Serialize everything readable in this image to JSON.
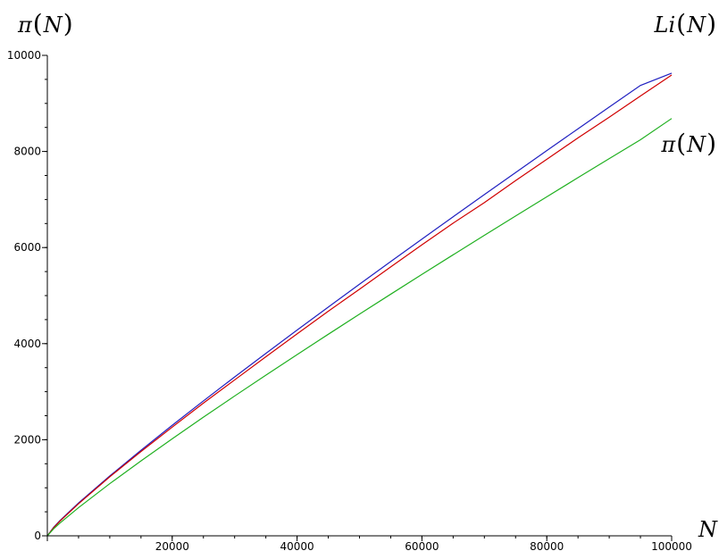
{
  "chart_data": {
    "type": "line",
    "xlabel": "N",
    "ylabel": "π(N)",
    "xlim": [
      0,
      100000
    ],
    "ylim": [
      0,
      10000
    ],
    "x_ticks": [
      0,
      20000,
      40000,
      60000,
      80000,
      100000
    ],
    "y_ticks": [
      0,
      2000,
      4000,
      6000,
      8000,
      10000
    ],
    "grid": false,
    "annotations": [
      {
        "text": "Li(N)",
        "name": "li-n-label"
      },
      {
        "text": "π(N)",
        "name": "pi-n-label"
      }
    ],
    "x": [
      0,
      1000,
      2000,
      5000,
      10000,
      15000,
      20000,
      25000,
      30000,
      35000,
      40000,
      45000,
      50000,
      55000,
      60000,
      65000,
      70000,
      75000,
      80000,
      85000,
      90000,
      95000,
      100000
    ],
    "series": [
      {
        "color": "#2020c0",
        "values": [
          0,
          177,
          314,
          683,
          1245,
          1781,
          2300,
          2808,
          3306,
          3797,
          4282,
          4761,
          5237,
          5708,
          6176,
          6641,
          7102,
          7561,
          8018,
          8472,
          8924,
          9374,
          9629
        ]
      },
      {
        "color": "#d00000",
        "values": [
          0,
          168,
          303,
          669,
          1229,
          1754,
          2262,
          2762,
          3245,
          3727,
          4203,
          4675,
          5133,
          5598,
          6057,
          6508,
          6935,
          7393,
          7837,
          8283,
          8713,
          9155,
          9592
        ]
      },
      {
        "color": "#20b020",
        "values": [
          0,
          145,
          263,
          587,
          1086,
          1559,
          2019,
          2469,
          2910,
          3344,
          3772,
          4195,
          4614,
          5029,
          5441,
          5849,
          6254,
          6657,
          7057,
          7455,
          7851,
          8244,
          8686
        ]
      }
    ]
  }
}
